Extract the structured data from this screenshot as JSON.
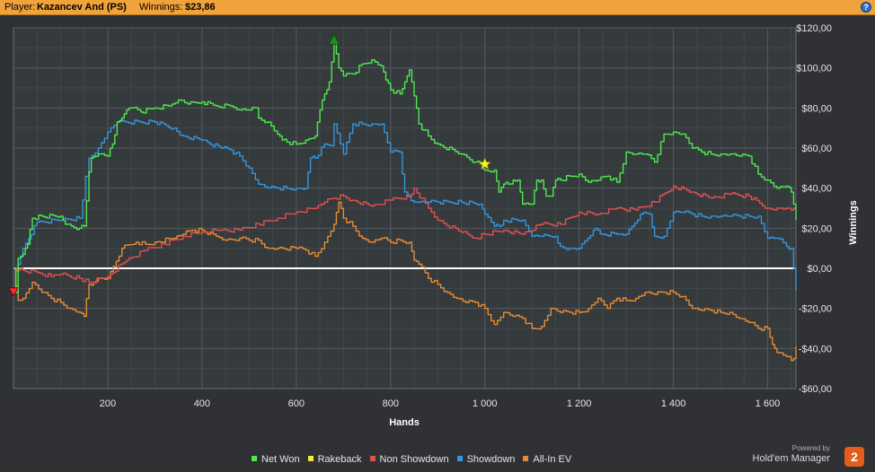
{
  "header": {
    "player_label": "Player:",
    "player_name": "Kazancev And (PS)",
    "winnings_label": "Winnings:",
    "winnings_value": "$23,86",
    "help_icon": "help-icon"
  },
  "branding": {
    "powered_by": "Powered by",
    "name": "Hold'em Manager",
    "logo_text": "2"
  },
  "colors": {
    "header_bg": "#f1a33b",
    "plot_bg": "#353a3d",
    "net_won": "#4ee94e",
    "rakeback": "#f2e93d",
    "non_showdown": "#e0504f",
    "showdown": "#3596dd",
    "all_in_ev": "#e58c35",
    "zero_line": "#ffffff"
  },
  "chart_data": {
    "type": "line",
    "xlabel": "Hands",
    "ylabel": "Winnings",
    "xlim": [
      0,
      1660
    ],
    "ylim": [
      -60,
      120
    ],
    "x_ticks": [
      200,
      400,
      600,
      800,
      1000,
      1200,
      1400,
      1600
    ],
    "x_tick_labels": [
      "200",
      "400",
      "600",
      "800",
      "1 000",
      "1 200",
      "1 400",
      "1 600"
    ],
    "y_ticks": [
      -60,
      -40,
      -20,
      0,
      20,
      40,
      60,
      80,
      100,
      120
    ],
    "y_tick_labels": [
      "-$60,00",
      "-$40,00",
      "-$20,00",
      "$0,00",
      "$20,00",
      "$40,00",
      "$60,00",
      "$80,00",
      "$100,00",
      "$120,00"
    ],
    "grid": true,
    "legend_position": "bottom",
    "series": [
      {
        "name": "Net Won",
        "color": "#4ee94e",
        "x": [
          0,
          5,
          10,
          20,
          30,
          40,
          60,
          100,
          110,
          140,
          150,
          160,
          165,
          180,
          200,
          210,
          220,
          230,
          240,
          250,
          270,
          300,
          330,
          350,
          370,
          400,
          430,
          460,
          480,
          500,
          520,
          520,
          540,
          560,
          570,
          580,
          600,
          620,
          640,
          650,
          660,
          670,
          680,
          690,
          700,
          720,
          740,
          760,
          780,
          790,
          800,
          820,
          830,
          840,
          850,
          860,
          880,
          900,
          950,
          980,
          990,
          1000,
          1020,
          1030,
          1040,
          1050,
          1060,
          1070,
          1080,
          1100,
          1110,
          1120,
          1130,
          1140,
          1150,
          1160,
          1180,
          1200,
          1220,
          1240,
          1260,
          1280,
          1300,
          1320,
          1340,
          1360,
          1380,
          1400,
          1420,
          1440,
          1460,
          1480,
          1500,
          1520,
          1540,
          1560,
          1580,
          1600,
          1620,
          1640,
          1650,
          1655,
          1660
        ],
        "y": [
          0,
          -12,
          5,
          7,
          12,
          25,
          26,
          26,
          22,
          20,
          21,
          48,
          55,
          57,
          56,
          62,
          73,
          75,
          79,
          80,
          78,
          80,
          81,
          84,
          82,
          83,
          81,
          81,
          79,
          79,
          80,
          75,
          73,
          67,
          64,
          63,
          62,
          64,
          66,
          79,
          87,
          93,
          114,
          100,
          96,
          97,
          102,
          104,
          101,
          94,
          89,
          87,
          93,
          99,
          86,
          72,
          66,
          62,
          57,
          53,
          52,
          49,
          49,
          38,
          42,
          42,
          44,
          44,
          32,
          32,
          44,
          44,
          36,
          36,
          44,
          44,
          46,
          47,
          43,
          44,
          46,
          43,
          58,
          57,
          57,
          53,
          67,
          68,
          67,
          60,
          58,
          57,
          57,
          57,
          56,
          56,
          47,
          44,
          40,
          41,
          38,
          32,
          24
        ]
      },
      {
        "name": "Rakeback",
        "color": "#f2e93d",
        "x": [
          0,
          1660
        ],
        "y": [
          0,
          0
        ]
      },
      {
        "name": "Non Showdown",
        "color": "#e0504f",
        "x": [
          0,
          20,
          50,
          80,
          100,
          140,
          160,
          200,
          240,
          280,
          320,
          360,
          400,
          440,
          480,
          520,
          560,
          600,
          640,
          660,
          680,
          700,
          720,
          760,
          800,
          840,
          850,
          880,
          900,
          950,
          980,
          1000,
          1040,
          1080,
          1120,
          1160,
          1200,
          1240,
          1280,
          1320,
          1360,
          1400,
          1440,
          1480,
          1520,
          1560,
          1600,
          1620,
          1640,
          1650,
          1655,
          1660
        ],
        "y": [
          0,
          -1,
          -2,
          -4,
          -3,
          -5,
          -7,
          -4,
          4,
          9,
          12,
          16,
          18,
          19,
          19,
          22,
          25,
          28,
          30,
          33,
          35,
          36,
          34,
          31,
          34,
          36,
          40,
          30,
          24,
          18,
          15,
          17,
          19,
          17,
          22,
          22,
          28,
          27,
          30,
          29,
          33,
          41,
          38,
          35,
          37,
          36,
          30,
          30,
          30,
          29,
          30,
          30
        ]
      },
      {
        "name": "Showdown",
        "color": "#3596dd",
        "x": [
          0,
          10,
          20,
          50,
          100,
          140,
          160,
          180,
          200,
          220,
          300,
          340,
          360,
          400,
          440,
          460,
          480,
          500,
          520,
          540,
          560,
          580,
          600,
          620,
          630,
          640,
          660,
          680,
          680,
          700,
          720,
          740,
          760,
          780,
          800,
          820,
          830,
          850,
          860,
          880,
          900,
          950,
          990,
          1000,
          1020,
          1030,
          1040,
          1080,
          1100,
          1120,
          1150,
          1160,
          1180,
          1200,
          1230,
          1240,
          1250,
          1280,
          1300,
          1330,
          1350,
          1360,
          1380,
          1400,
          1420,
          1440,
          1460,
          1480,
          1500,
          1520,
          1540,
          1560,
          1580,
          1600,
          1620,
          1640,
          1650,
          1655,
          1660
        ],
        "y": [
          0,
          2,
          10,
          23,
          24,
          25,
          55,
          60,
          68,
          73,
          73,
          70,
          66,
          64,
          60,
          59,
          56,
          50,
          42,
          40,
          40,
          40,
          40,
          40,
          55,
          55,
          62,
          62,
          72,
          57,
          72,
          72,
          72,
          72,
          58,
          58,
          38,
          33,
          33,
          33,
          33,
          33,
          32,
          27,
          21,
          21,
          24,
          24,
          16,
          16,
          16,
          11,
          10,
          10,
          19,
          19,
          17,
          17,
          17,
          27,
          27,
          16,
          16,
          28,
          28,
          27,
          26,
          26,
          26,
          26,
          26,
          26,
          26,
          15,
          15,
          11,
          10,
          0,
          -11
        ]
      },
      {
        "name": "All-In EV",
        "color": "#e58c35",
        "x": [
          0,
          10,
          20,
          40,
          60,
          80,
          100,
          120,
          140,
          150,
          160,
          170,
          180,
          200,
          230,
          260,
          280,
          300,
          340,
          360,
          380,
          400,
          430,
          450,
          480,
          500,
          520,
          540,
          560,
          600,
          620,
          640,
          660,
          680,
          690,
          700,
          720,
          740,
          760,
          780,
          800,
          820,
          840,
          850,
          860,
          880,
          900,
          920,
          940,
          960,
          980,
          1000,
          1020,
          1040,
          1060,
          1080,
          1100,
          1120,
          1140,
          1160,
          1180,
          1200,
          1220,
          1240,
          1260,
          1280,
          1300,
          1320,
          1340,
          1360,
          1380,
          1400,
          1420,
          1440,
          1460,
          1480,
          1500,
          1520,
          1540,
          1560,
          1580,
          1600,
          1610,
          1620,
          1640,
          1650,
          1655,
          1660
        ],
        "y": [
          0,
          -16,
          -15,
          -7,
          -12,
          -15,
          -17,
          -20,
          -22,
          -24,
          -8,
          -7,
          -5,
          -5,
          10,
          13,
          12,
          13,
          15,
          17,
          19,
          19,
          16,
          14,
          15,
          14,
          14,
          10,
          10,
          10,
          9,
          6,
          13,
          22,
          33,
          25,
          21,
          15,
          13,
          15,
          13,
          14,
          13,
          4,
          2,
          -5,
          -8,
          -12,
          -15,
          -17,
          -17,
          -20,
          -28,
          -22,
          -24,
          -25,
          -30,
          -29,
          -20,
          -22,
          -22,
          -22,
          -20,
          -15,
          -20,
          -15,
          -16,
          -15,
          -12,
          -13,
          -12,
          -12,
          -14,
          -20,
          -21,
          -21,
          -22,
          -22,
          -25,
          -27,
          -30,
          -30,
          -38,
          -42,
          -44,
          -46,
          -45,
          -39
        ]
      }
    ]
  }
}
